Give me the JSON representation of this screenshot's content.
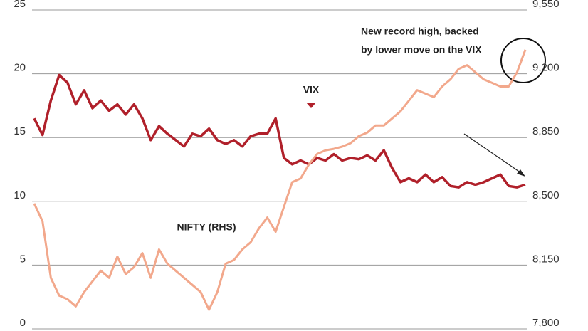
{
  "chart_data": {
    "type": "line",
    "categories": [
      null,
      null,
      null,
      null,
      null,
      null,
      null,
      null,
      null,
      null,
      null,
      null,
      null,
      null,
      null,
      null,
      null,
      null,
      null,
      null,
      null,
      null,
      null,
      null,
      null,
      null,
      null,
      null,
      null,
      null,
      null,
      null,
      null,
      null,
      null,
      null,
      null,
      null,
      null,
      null,
      null,
      null,
      null,
      null,
      null,
      null,
      null,
      null,
      null,
      null,
      null,
      null,
      null,
      null,
      null,
      null,
      null,
      null,
      null,
      null
    ],
    "series": [
      {
        "name": "VIX",
        "color": "#b0202a",
        "values": [
          16.5,
          15.2,
          17.9,
          19.9,
          19.3,
          17.6,
          18.7,
          17.3,
          17.9,
          17.1,
          17.6,
          16.8,
          17.6,
          16.5,
          14.8,
          15.9,
          15.3,
          14.8,
          14.3,
          15.3,
          15.1,
          15.7,
          14.8,
          14.5,
          14.8,
          14.3,
          15.1,
          15.3,
          15.3,
          16.5,
          13.4,
          12.9,
          13.2,
          12.9,
          13.4,
          13.2,
          13.7,
          13.2,
          13.4,
          13.3,
          13.6,
          13.2,
          14.0,
          12.6,
          11.5,
          11.8,
          11.5,
          12.1,
          11.5,
          11.9,
          11.2,
          11.1,
          11.5,
          11.3,
          11.5,
          11.8,
          12.1,
          11.2,
          11.1,
          11.3
        ]
      },
      {
        "name": "NIFTY (RHS)",
        "color": "#f2a88c",
        "axis": "y2",
        "values": [
          8488,
          8391,
          8080,
          7983,
          7963,
          7924,
          8002,
          8061,
          8119,
          8080,
          8197,
          8100,
          8139,
          8216,
          8080,
          8236,
          8158,
          8119,
          8080,
          8041,
          8002,
          7905,
          8002,
          8158,
          8178,
          8236,
          8275,
          8352,
          8411,
          8333,
          8469,
          8605,
          8625,
          8702,
          8760,
          8780,
          8788,
          8800,
          8819,
          8858,
          8877,
          8916,
          8916,
          8955,
          8994,
          9052,
          9110,
          9091,
          9072,
          9130,
          9169,
          9227,
          9247,
          9208,
          9169,
          9150,
          9130,
          9130,
          9208,
          9332
        ]
      }
    ],
    "ylim": [
      0,
      25
    ],
    "yticks": [
      0,
      5,
      10,
      15,
      20,
      25
    ],
    "y2lim": [
      7800,
      9550
    ],
    "y2ticks": [
      {
        "value": 7800,
        "label": "7,800"
      },
      {
        "value": 8150,
        "label": "8,150"
      },
      {
        "value": 8500,
        "label": "8,500"
      },
      {
        "value": 8850,
        "label": "8,850"
      },
      {
        "value": 9200,
        "label": "9,200"
      },
      {
        "value": 9550,
        "label": "9,550"
      }
    ],
    "grid": true,
    "annotations": [
      "New record high, backed",
      "by lower move on the VIX"
    ]
  }
}
